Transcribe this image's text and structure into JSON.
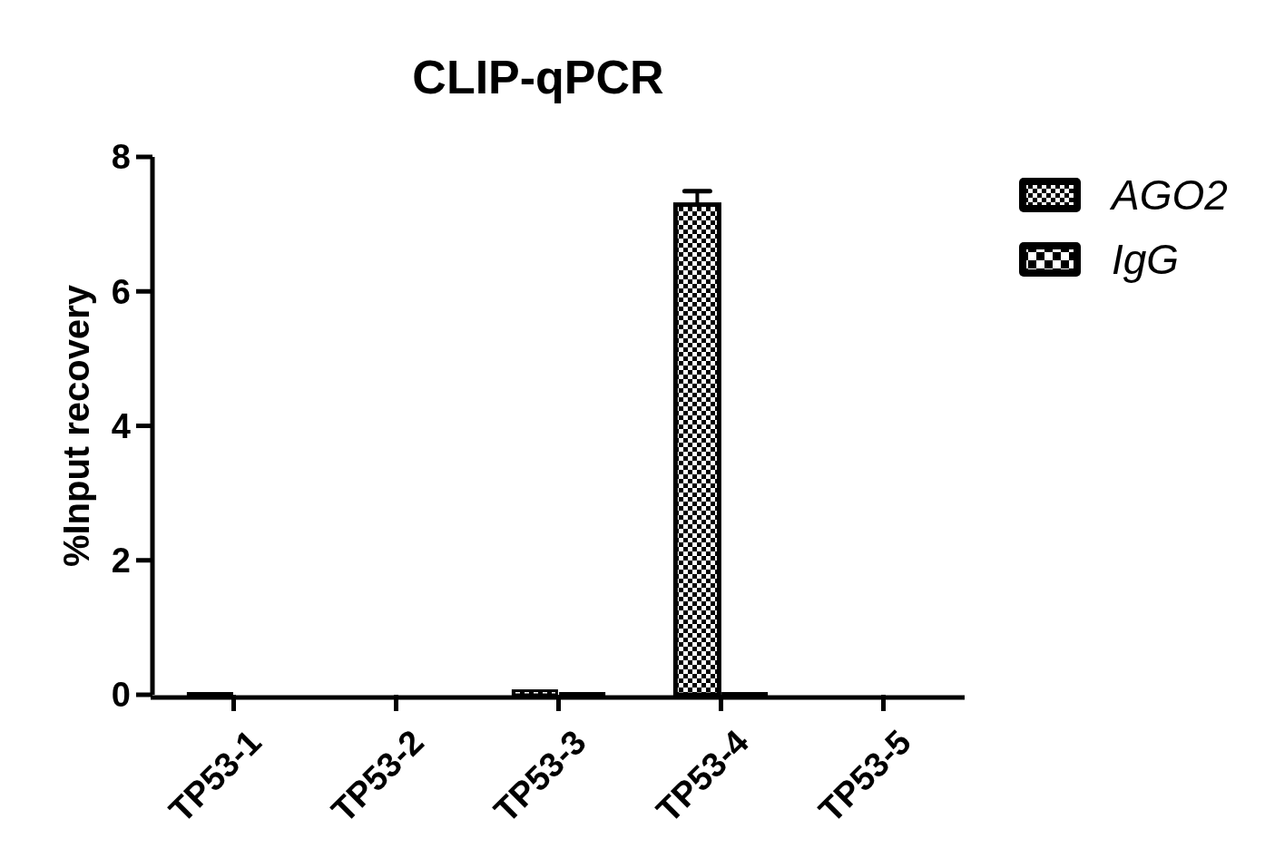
{
  "chart_data": {
    "type": "bar",
    "title": "CLIP-qPCR",
    "ylabel": "%Input recovery",
    "categories": [
      "TP53-1",
      "TP53-2",
      "TP53-3",
      "TP53-4",
      "TP53-5"
    ],
    "series": [
      {
        "name": "AGO2",
        "color": "#000000",
        "values": [
          0.02,
          0,
          0.06,
          7.29,
          0
        ],
        "errors": [
          null,
          null,
          null,
          0.2,
          null
        ]
      },
      {
        "name": "IgG",
        "color": "#000000",
        "values": [
          0,
          0,
          0.02,
          0.02,
          0
        ]
      }
    ],
    "ylim": [
      0,
      8
    ],
    "yticks": [
      0,
      2,
      4,
      6,
      8
    ],
    "legend": "top right",
    "grid": false
  }
}
